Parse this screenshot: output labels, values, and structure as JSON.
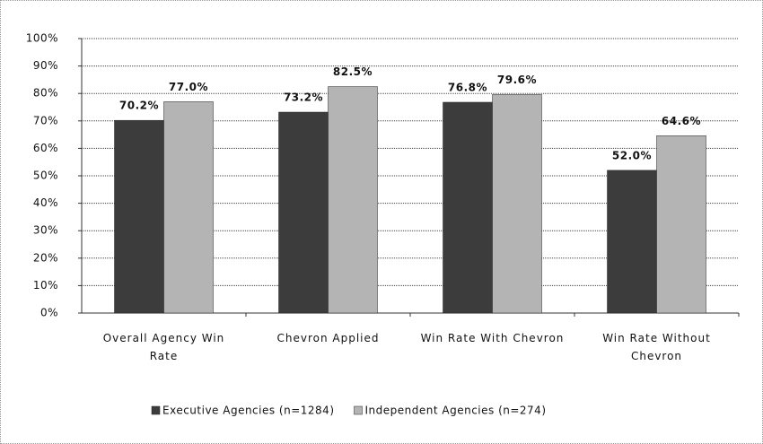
{
  "chart_data": {
    "type": "bar",
    "categories": [
      "Overall Agency Win Rate",
      "Chevron Applied",
      "Win Rate With Chevron",
      "Win Rate Without Chevron"
    ],
    "series": [
      {
        "name": "Executive Agencies (n=1284)",
        "color": "#3c3c3c",
        "values": [
          70.2,
          73.2,
          76.8,
          52.0
        ],
        "value_labels": [
          "70.2%",
          "73.2%",
          "76.8%",
          "52.0%"
        ]
      },
      {
        "name": "Independent Agencies (n=274)",
        "color": "#b4b4b4",
        "values": [
          77.0,
          82.5,
          79.6,
          64.6
        ],
        "value_labels": [
          "77.0%",
          "82.5%",
          "79.6%",
          "64.6%"
        ]
      }
    ],
    "ylim": [
      0,
      100
    ],
    "yticks": [
      {
        "value": 0,
        "label": "0%"
      },
      {
        "value": 10,
        "label": "10%"
      },
      {
        "value": 20,
        "label": "20%"
      },
      {
        "value": 30,
        "label": "30%"
      },
      {
        "value": 40,
        "label": "40%"
      },
      {
        "value": 50,
        "label": "50%"
      },
      {
        "value": 60,
        "label": "60%"
      },
      {
        "value": 70,
        "label": "70%"
      },
      {
        "value": 80,
        "label": "80%"
      },
      {
        "value": 90,
        "label": "90%"
      },
      {
        "value": 100,
        "label": "100%"
      }
    ],
    "grid": true,
    "legend": "bottom"
  }
}
